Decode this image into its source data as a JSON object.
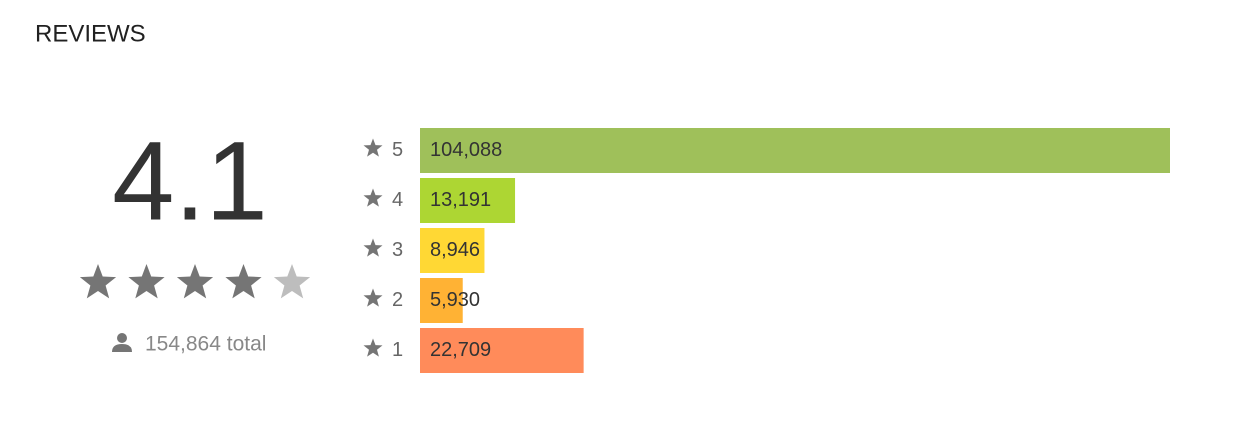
{
  "title": "REVIEWS",
  "score": 4.1,
  "total": "154,864 total",
  "chart_data": {
    "type": "bar",
    "orientation": "horizontal",
    "categories": [
      "5",
      "4",
      "3",
      "2",
      "1"
    ],
    "values": [
      104088,
      13191,
      8946,
      5930,
      22709
    ],
    "value_labels": [
      "104,088",
      "13,191",
      "8,946",
      "5,930",
      "22,709"
    ],
    "colors": [
      "#9fc05a",
      "#add633",
      "#ffd834",
      "#ffb234",
      "#ff8b5a"
    ]
  }
}
